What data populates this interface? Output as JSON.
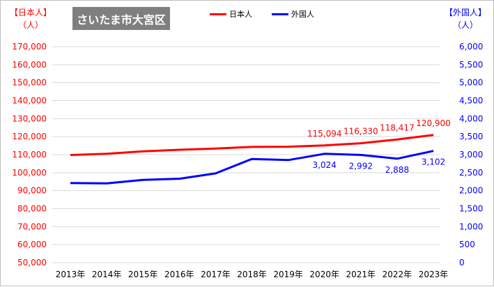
{
  "title": "さいたま市大宮区",
  "left_axis_title": [
    "【日本人】",
    "（人）"
  ],
  "right_axis_title": [
    "【外国人】",
    "（人）"
  ],
  "colors": {
    "japanese": "#ff0000",
    "foreign": "#0000ff",
    "grid": "#d9d9d9",
    "title_bg": "#7f7f7f"
  },
  "chart_data": {
    "type": "line",
    "x": [
      "2013年",
      "2014年",
      "2015年",
      "2016年",
      "2017年",
      "2018年",
      "2019年",
      "2020年",
      "2021年",
      "2022年",
      "2023年"
    ],
    "series": [
      {
        "name": "日本人",
        "axis": "left",
        "color": "#ff0000",
        "values": [
          109800,
          110500,
          111800,
          112700,
          113400,
          114300,
          114400,
          115094,
          116330,
          118417,
          120900
        ],
        "data_labels": [
          null,
          null,
          null,
          null,
          null,
          null,
          null,
          "115,094",
          "116,330",
          "118,417",
          "120,900"
        ]
      },
      {
        "name": "外国人",
        "axis": "right",
        "color": "#0000ff",
        "values": [
          2210,
          2200,
          2300,
          2330,
          2480,
          2880,
          2850,
          3024,
          2992,
          2888,
          3102
        ],
        "data_labels": [
          null,
          null,
          null,
          null,
          null,
          null,
          null,
          "3,024",
          "2,992",
          "2,888",
          "3,102"
        ]
      }
    ],
    "y_left": {
      "min": 50000,
      "max": 170000,
      "step": 10000,
      "tick_labels": [
        "50,000",
        "60,000",
        "70,000",
        "80,000",
        "90,000",
        "100,000",
        "110,000",
        "120,000",
        "130,000",
        "140,000",
        "150,000",
        "160,000",
        "170,000"
      ]
    },
    "y_right": {
      "min": 0,
      "max": 6000,
      "step": 500,
      "tick_labels": [
        "0",
        "500",
        "1,000",
        "1,500",
        "2,000",
        "2,500",
        "3,000",
        "3,500",
        "4,000",
        "4,500",
        "5,000",
        "5,500",
        "6,000"
      ]
    },
    "grid": true,
    "legend_position": "top-center"
  }
}
